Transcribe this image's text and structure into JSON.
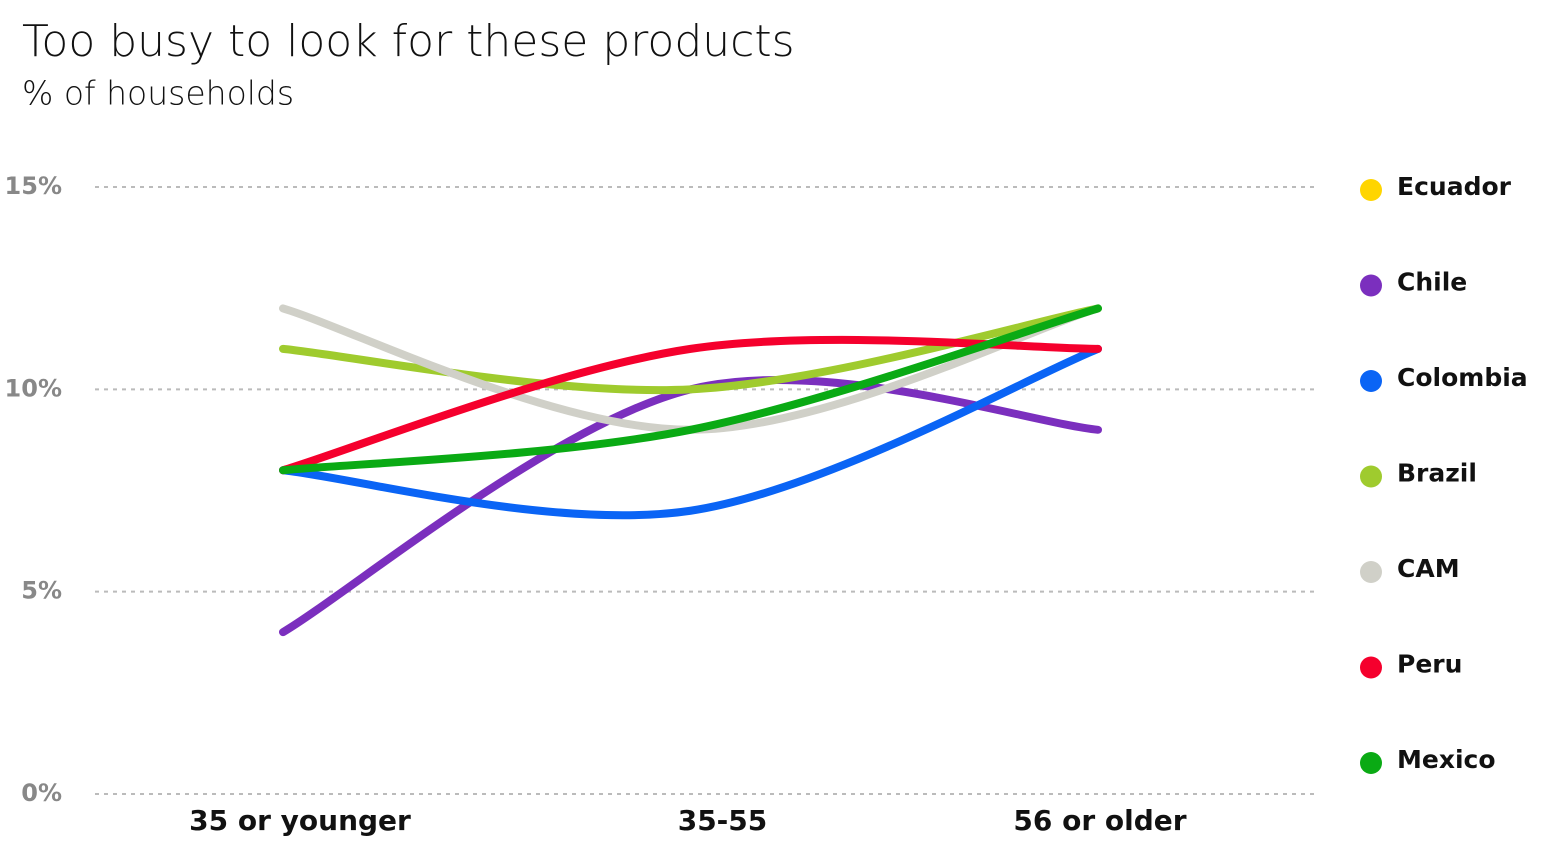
{
  "chart_data": {
    "type": "line",
    "title": "Too busy to look for these products",
    "subtitle": "% of households",
    "categories": [
      "35 or younger",
      "35-55",
      "56 or older"
    ],
    "series": [
      {
        "name": "Ecuador",
        "color": "#ffd500",
        "values": [
          null,
          null,
          null
        ]
      },
      {
        "name": "Chile",
        "color": "#7b2fbe",
        "values": [
          4,
          10,
          9
        ]
      },
      {
        "name": "Colombia",
        "color": "#0a64f5",
        "values": [
          8,
          7,
          11
        ]
      },
      {
        "name": "Brazil",
        "color": "#9fcb2e",
        "values": [
          11,
          10,
          12
        ]
      },
      {
        "name": "CAM",
        "color": "#d0d0c8",
        "values": [
          12,
          9,
          12
        ]
      },
      {
        "name": "Peru",
        "color": "#f5002d",
        "values": [
          8,
          11,
          11
        ]
      },
      {
        "name": "Mexico",
        "color": "#0aaa14",
        "values": [
          8,
          9,
          12
        ]
      }
    ],
    "ylim": [
      0,
      15
    ],
    "yticks": [
      {
        "value": 0,
        "label": "0%"
      },
      {
        "value": 5,
        "label": "5%"
      },
      {
        "value": 10,
        "label": "10%"
      },
      {
        "value": 15,
        "label": "15%"
      }
    ],
    "grid": true,
    "legend": "right"
  }
}
